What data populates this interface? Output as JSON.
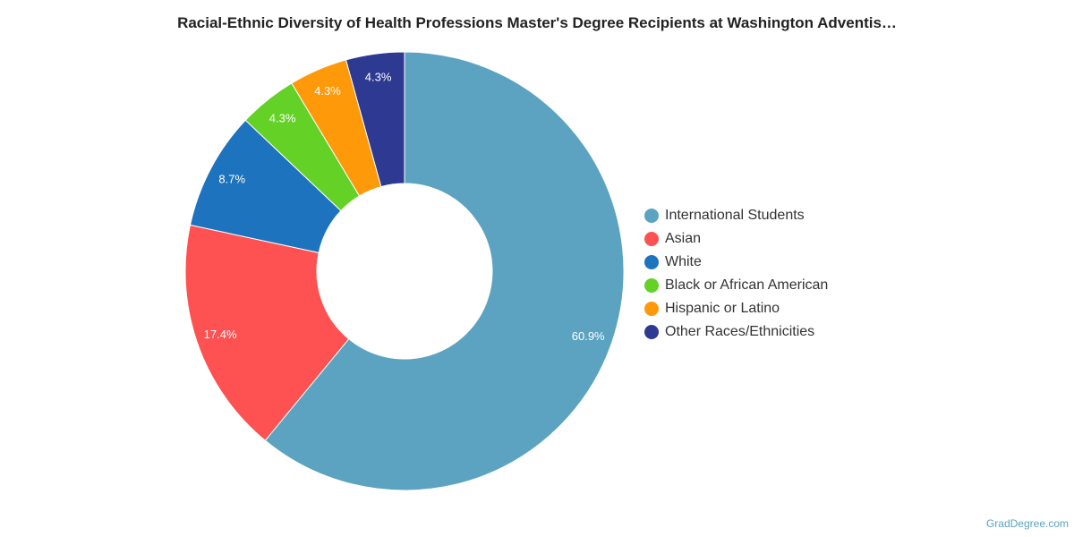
{
  "chart_data": {
    "type": "pie",
    "title": "Racial-Ethnic Diversity of Health Professions Master's Degree Recipients at Washington Adventis…",
    "categories": [
      "International Students",
      "Asian",
      "White",
      "Black or African American",
      "Hispanic or Latino",
      "Other Races/Ethnicities"
    ],
    "values": [
      60.9,
      17.4,
      8.7,
      4.3,
      4.3,
      4.3
    ],
    "value_labels": [
      "60.9%",
      "17.4%",
      "8.7%",
      "4.3%",
      "4.3%",
      "4.3%"
    ],
    "colors": [
      "#5ba3c0",
      "#fe5152",
      "#1e73be",
      "#63d125",
      "#fe9a0a",
      "#2e3a92"
    ],
    "donut": true,
    "legend_position": "right"
  },
  "watermark": "GradDegree.com"
}
